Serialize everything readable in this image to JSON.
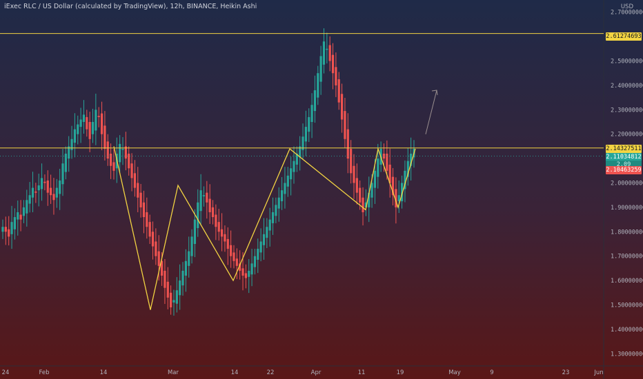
{
  "header": {
    "title": "iExec RLC / US Dollar (calculated by TradingView), 12h, BINANCE, Heikin Ashi",
    "currency": "USD"
  },
  "y_axis": {
    "labels": [
      "2.70000000",
      "2.50000000",
      "2.40000000",
      "2.30000000",
      "2.20000000",
      "2.00000000",
      "1.90000000",
      "1.80000000",
      "1.70000000",
      "1.60000000",
      "1.50000000",
      "1.40000000",
      "1.30000000"
    ]
  },
  "x_axis": {
    "labels": [
      "24",
      "Feb",
      "14",
      "Mar",
      "14",
      "22",
      "Apr",
      "11",
      "19",
      "May",
      "9",
      "23",
      "Jun"
    ]
  },
  "price_tags": {
    "resistance_top": "2.61274693",
    "resistance_mid": "2.14327511",
    "last_price": "2.11034812",
    "bid_price": "2.09",
    "low_price": "2.10463259"
  },
  "colors": {
    "up": "#26a69a",
    "down": "#ef5350",
    "level_line": "#f3d442",
    "pattern": "#f3d442",
    "bg_top": "#1f2a48",
    "bg_bottom": "#5a1717"
  },
  "chart_data": {
    "type": "candlestick",
    "style": "Heikin Ashi",
    "symbol": "iExec RLC / US Dollar",
    "interval": "12h",
    "exchange": "BINANCE",
    "ylim": [
      1.25,
      2.75
    ],
    "x_ticks": [
      "24",
      "Feb",
      "14",
      "Mar",
      "14",
      "22",
      "Apr",
      "11",
      "19",
      "May",
      "9",
      "23",
      "Jun"
    ],
    "horizontal_levels": [
      2.61274693,
      2.14327511
    ],
    "pattern_zigzag_prices": [
      2.15,
      1.48,
      1.99,
      1.6,
      2.14,
      1.89,
      2.14,
      1.9,
      2.14
    ],
    "projection_arrow_prices": [
      2.2,
      2.38
    ],
    "candle_series_close": [
      1.82,
      1.8,
      1.78,
      1.84,
      1.86,
      1.88,
      1.85,
      1.9,
      1.93,
      1.95,
      1.98,
      1.96,
      1.99,
      2.02,
      2.0,
      1.96,
      1.95,
      1.93,
      1.98,
      2.01,
      2.08,
      2.12,
      2.15,
      2.18,
      2.22,
      2.24,
      2.26,
      2.28,
      2.22,
      2.18,
      2.25,
      2.3,
      2.27,
      2.2,
      2.14,
      2.1,
      2.07,
      2.05,
      2.12,
      2.16,
      2.14,
      2.1,
      2.06,
      2.02,
      1.98,
      1.94,
      1.9,
      1.86,
      1.82,
      1.78,
      1.74,
      1.7,
      1.66,
      1.62,
      1.57,
      1.53,
      1.49,
      1.52,
      1.56,
      1.6,
      1.64,
      1.68,
      1.72,
      1.78,
      1.85,
      1.92,
      1.97,
      1.95,
      1.92,
      1.88,
      1.86,
      1.82,
      1.8,
      1.78,
      1.76,
      1.73,
      1.7,
      1.68,
      1.66,
      1.64,
      1.62,
      1.61,
      1.64,
      1.67,
      1.7,
      1.73,
      1.76,
      1.79,
      1.82,
      1.85,
      1.88,
      1.91,
      1.94,
      1.97,
      2.0,
      2.03,
      2.06,
      2.09,
      2.12,
      2.15,
      2.19,
      2.23,
      2.27,
      2.32,
      2.38,
      2.45,
      2.52,
      2.58,
      2.55,
      2.5,
      2.45,
      2.4,
      2.33,
      2.26,
      2.18,
      2.1,
      2.04,
      2.0,
      1.96,
      1.92,
      1.88,
      1.92,
      1.96,
      2.0,
      2.05,
      2.1,
      2.14,
      2.1,
      2.05,
      2.0,
      1.95,
      1.9,
      1.95,
      2.0,
      2.05,
      2.09,
      2.12,
      2.14
    ]
  }
}
